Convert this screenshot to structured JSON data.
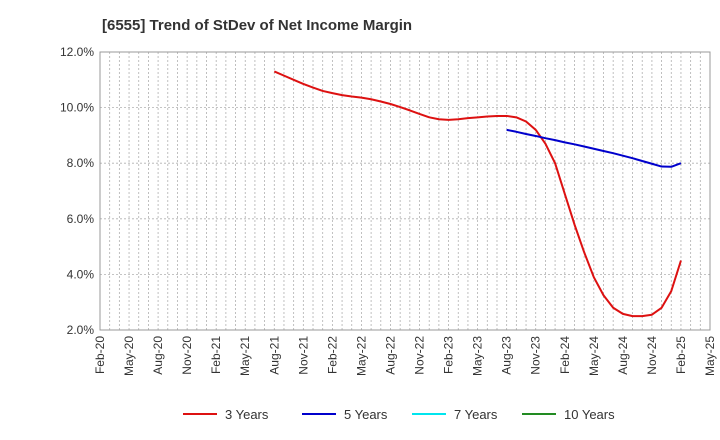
{
  "chart_data": {
    "type": "line",
    "title": "[6555]  Trend of StDev of Net Income Margin",
    "xlabel": "",
    "ylabel": "",
    "ylim": [
      2.0,
      12.0
    ],
    "y_ticks": [
      "2.0%",
      "4.0%",
      "6.0%",
      "8.0%",
      "10.0%",
      "12.0%"
    ],
    "x_ticks": [
      "Feb-20",
      "May-20",
      "Aug-20",
      "Nov-20",
      "Feb-21",
      "May-21",
      "Aug-21",
      "Nov-21",
      "Feb-22",
      "May-22",
      "Aug-22",
      "Nov-22",
      "Feb-23",
      "May-23",
      "Aug-23",
      "Nov-23",
      "Feb-24",
      "May-24",
      "Aug-24",
      "Nov-24",
      "Feb-25",
      "May-25"
    ],
    "x_range": [
      "2020-02",
      "2025-05"
    ],
    "grid": true,
    "legend_position": "bottom",
    "series": [
      {
        "name": "3 Years",
        "color": "#dd1111",
        "points": [
          [
            "2021-08",
            11.3
          ],
          [
            "2021-09",
            11.15
          ],
          [
            "2021-10",
            11.0
          ],
          [
            "2021-11",
            10.85
          ],
          [
            "2021-12",
            10.72
          ],
          [
            "2022-01",
            10.6
          ],
          [
            "2022-02",
            10.52
          ],
          [
            "2022-03",
            10.45
          ],
          [
            "2022-04",
            10.4
          ],
          [
            "2022-05",
            10.36
          ],
          [
            "2022-06",
            10.3
          ],
          [
            "2022-07",
            10.22
          ],
          [
            "2022-08",
            10.13
          ],
          [
            "2022-09",
            10.02
          ],
          [
            "2022-10",
            9.9
          ],
          [
            "2022-11",
            9.77
          ],
          [
            "2022-12",
            9.65
          ],
          [
            "2023-01",
            9.58
          ],
          [
            "2023-02",
            9.56
          ],
          [
            "2023-03",
            9.58
          ],
          [
            "2023-04",
            9.62
          ],
          [
            "2023-05",
            9.65
          ],
          [
            "2023-06",
            9.68
          ],
          [
            "2023-07",
            9.7
          ],
          [
            "2023-08",
            9.7
          ],
          [
            "2023-09",
            9.65
          ],
          [
            "2023-10",
            9.5
          ],
          [
            "2023-11",
            9.2
          ],
          [
            "2023-12",
            8.7
          ],
          [
            "2024-01",
            8.0
          ],
          [
            "2024-02",
            6.9
          ],
          [
            "2024-03",
            5.8
          ],
          [
            "2024-04",
            4.8
          ],
          [
            "2024-05",
            3.9
          ],
          [
            "2024-06",
            3.25
          ],
          [
            "2024-07",
            2.8
          ],
          [
            "2024-08",
            2.58
          ],
          [
            "2024-09",
            2.5
          ],
          [
            "2024-10",
            2.5
          ],
          [
            "2024-11",
            2.55
          ],
          [
            "2024-12",
            2.8
          ],
          [
            "2025-01",
            3.4
          ],
          [
            "2025-02",
            4.5
          ]
        ]
      },
      {
        "name": "5 Years",
        "color": "#0000cc",
        "points": [
          [
            "2023-08",
            9.2
          ],
          [
            "2023-09",
            9.13
          ],
          [
            "2023-10",
            9.05
          ],
          [
            "2023-11",
            8.98
          ],
          [
            "2023-12",
            8.9
          ],
          [
            "2024-01",
            8.83
          ],
          [
            "2024-02",
            8.75
          ],
          [
            "2024-03",
            8.68
          ],
          [
            "2024-04",
            8.6
          ],
          [
            "2024-05",
            8.52
          ],
          [
            "2024-06",
            8.44
          ],
          [
            "2024-07",
            8.36
          ],
          [
            "2024-08",
            8.27
          ],
          [
            "2024-09",
            8.18
          ],
          [
            "2024-10",
            8.08
          ],
          [
            "2024-11",
            7.98
          ],
          [
            "2024-12",
            7.88
          ],
          [
            "2025-01",
            7.87
          ],
          [
            "2025-02",
            8.0
          ]
        ]
      },
      {
        "name": "7 Years",
        "color": "#00e5ee",
        "points": []
      },
      {
        "name": "10 Years",
        "color": "#228b22",
        "points": []
      }
    ]
  }
}
